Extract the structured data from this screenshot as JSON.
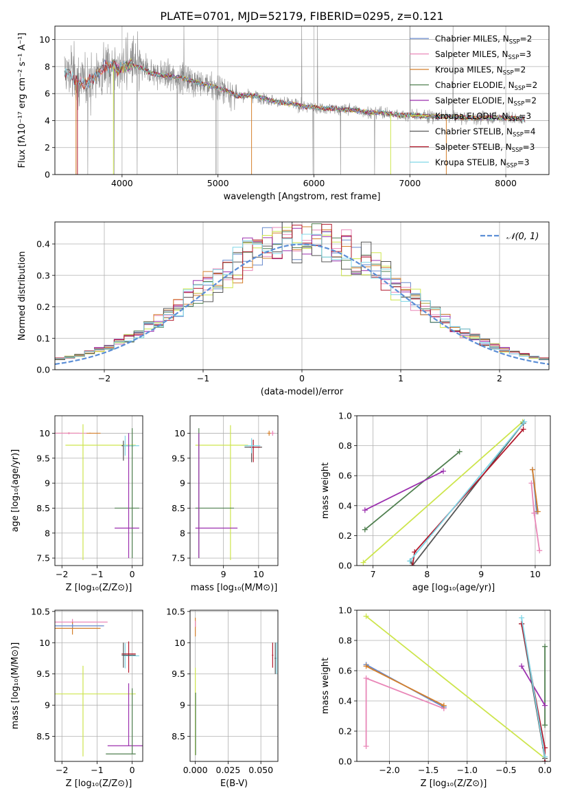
{
  "title": "PLATE=0701, MJD=52179, FIBERID=0295, z=0.121",
  "colors": {
    "Chabrier MILES": "#6688cc",
    "Salpeter MILES": "#e987b8",
    "Kroupa MILES": "#d47f2a",
    "Chabrier ELODIE": "#4f7f4f",
    "Salpeter ELODIE": "#9b2fae",
    "Kroupa ELODIE": "#cde54c",
    "Chabrier STELIB": "#555555",
    "Salpeter STELIB": "#b2182b",
    "Kroupa STELIB": "#7fd6e6",
    "data": "#888888",
    "normal": "#5b8ed6"
  },
  "chart_data": [
    {
      "id": "spectrum",
      "type": "line",
      "xlabel": "wavelength [Angstrom, rest frame]",
      "ylabel": "Flux [fλ10⁻¹⁷ erg cm⁻² s⁻¹ A⁻¹]",
      "xlim": [
        3300,
        8450
      ],
      "ylim": [
        0,
        11
      ],
      "xticks": [
        4000,
        5000,
        6000,
        7000,
        8000
      ],
      "yticks": [
        0,
        2,
        4,
        6,
        8,
        10
      ],
      "legend_position": "top-right",
      "legend": [
        {
          "series": "Chabrier MILES",
          "label": "Chabrier MILES, N",
          "sub": "SSP",
          "tail": "=2"
        },
        {
          "series": "Salpeter MILES",
          "label": "Salpeter MILES, N",
          "sub": "SSP",
          "tail": "=3"
        },
        {
          "series": "Kroupa MILES",
          "label": "Kroupa MILES, N",
          "sub": "SSP",
          "tail": "=2"
        },
        {
          "series": "Chabrier ELODIE",
          "label": "Chabrier ELODIE, N",
          "sub": "SSP",
          "tail": "=2"
        },
        {
          "series": "Salpeter ELODIE",
          "label": "Salpeter ELODIE, N",
          "sub": "SSP",
          "tail": "=2"
        },
        {
          "series": "Kroupa ELODIE",
          "label": "Kroupa ELODIE, N",
          "sub": "SSP",
          "tail": "=3"
        },
        {
          "series": "Chabrier STELIB",
          "label": "Chabrier STELIB, N",
          "sub": "SSP",
          "tail": "=4"
        },
        {
          "series": "Salpeter STELIB",
          "label": "Salpeter STELIB, N",
          "sub": "SSP",
          "tail": "=3"
        },
        {
          "series": "Kroupa STELIB",
          "label": "Kroupa STELIB, N",
          "sub": "SSP",
          "tail": "=3"
        }
      ],
      "continuum": [
        [
          3400,
          7.4
        ],
        [
          3450,
          7.6
        ],
        [
          3500,
          7.1
        ],
        [
          3550,
          6.9
        ],
        [
          3600,
          6.8
        ],
        [
          3650,
          6.9
        ],
        [
          3700,
          7.2
        ],
        [
          3750,
          7.5
        ],
        [
          3800,
          7.9
        ],
        [
          3850,
          8.0
        ],
        [
          3900,
          8.1
        ],
        [
          3950,
          7.7
        ],
        [
          4000,
          8.0
        ],
        [
          4100,
          8.1
        ],
        [
          4200,
          7.9
        ],
        [
          4300,
          7.5
        ],
        [
          4400,
          7.4
        ],
        [
          4500,
          7.3
        ],
        [
          4600,
          7.2
        ],
        [
          4700,
          7.0
        ],
        [
          4800,
          6.8
        ],
        [
          4900,
          6.6
        ],
        [
          5000,
          6.4
        ],
        [
          5100,
          6.2
        ],
        [
          5200,
          5.8
        ],
        [
          5300,
          5.9
        ],
        [
          5400,
          5.8
        ],
        [
          5500,
          5.6
        ],
        [
          5600,
          5.4
        ],
        [
          5700,
          5.3
        ],
        [
          5800,
          5.2
        ],
        [
          5900,
          5.0
        ],
        [
          6000,
          5.0
        ],
        [
          6100,
          4.9
        ],
        [
          6200,
          4.9
        ],
        [
          6300,
          4.8
        ],
        [
          6400,
          4.8
        ],
        [
          6500,
          4.7
        ],
        [
          6600,
          4.6
        ],
        [
          6700,
          4.6
        ],
        [
          6800,
          4.5
        ],
        [
          6900,
          4.4
        ],
        [
          7000,
          4.4
        ],
        [
          7200,
          4.3
        ],
        [
          7400,
          4.3
        ],
        [
          7600,
          4.2
        ],
        [
          7800,
          4.2
        ],
        [
          8000,
          4.2
        ],
        [
          8200,
          4.1
        ]
      ]
    },
    {
      "id": "residuals",
      "type": "bar",
      "xlabel": "(data-model)/error",
      "ylabel": "Normed distribution",
      "xlim": [
        -2.5,
        2.5
      ],
      "ylim": [
        0,
        0.47
      ],
      "xticks": [
        -2,
        -1,
        0,
        1,
        2
      ],
      "yticks": [
        0.0,
        0.1,
        0.2,
        0.3,
        0.4
      ],
      "legend": "𝒩(0, 1)",
      "legend_position": "top-right",
      "bin_width": 0.1
    },
    {
      "id": "age_vs_Z",
      "type": "scatter",
      "xlabel": "Z [log₁₀(Z/Z⊙)]",
      "ylabel": "age  [log₁₀(age/yr)]",
      "xlim": [
        -2.2,
        0.3
      ],
      "ylim": [
        7.35,
        10.35
      ],
      "xticks": [
        -2,
        -1,
        0
      ],
      "yticks": [
        7.5,
        8.0,
        8.5,
        9.0,
        9.5,
        10.0
      ],
      "points": [
        {
          "series": "Kroupa MILES",
          "x": -1.8,
          "y": 10.0,
          "xerr": [
            0.5,
            0.3
          ],
          "yerr": 0.02
        },
        {
          "series": "Salpeter MILES",
          "x": -1.8,
          "y": 10.0,
          "xerr": [
            0.4,
            0.5
          ],
          "yerr": 0.02
        },
        {
          "series": "Kroupa MILES",
          "x": -1.2,
          "y": 10.0,
          "xerr": [
            0.1,
            0.3
          ],
          "yerr": 0.01
        },
        {
          "series": "Kroupa ELODIE",
          "x": -1.4,
          "y": 9.76,
          "xerr": [
            0.5,
            1.5
          ],
          "yerr": [
            2.3,
            0.42
          ]
        },
        {
          "series": "Chabrier STELIB",
          "x": -0.25,
          "y": 9.75,
          "xerr": [
            0.05,
            0.3
          ],
          "yerr": [
            0.3,
            0.1
          ]
        },
        {
          "series": "Kroupa STELIB",
          "x": -0.2,
          "y": 9.75,
          "xerr": [
            0.05,
            0.4
          ],
          "yerr": 0.2
        },
        {
          "series": "Chabrier ELODIE",
          "x": 0.0,
          "y": 8.5,
          "xerr": [
            0.5,
            0.2
          ],
          "yerr": [
            1.0,
            1.6
          ]
        },
        {
          "series": "Salpeter ELODIE",
          "x": -0.1,
          "y": 8.1,
          "xerr": [
            0.4,
            0.3
          ],
          "yerr": [
            0.6,
            1.9
          ]
        }
      ]
    },
    {
      "id": "age_vs_mass",
      "type": "scatter",
      "xlabel": "mass [log₁₀(M/M⊙)]",
      "ylabel": "",
      "xlim": [
        8.05,
        10.55
      ],
      "ylim": [
        7.35,
        10.35
      ],
      "xticks": [
        9,
        10
      ],
      "yticks": [
        7.5,
        8.0,
        8.5,
        9.0,
        9.5,
        10.0
      ],
      "points": [
        {
          "series": "Kroupa MILES",
          "x": 10.3,
          "y": 10.0,
          "xerr": 0.05,
          "yerr": 0.05
        },
        {
          "series": "Salpeter MILES",
          "x": 10.4,
          "y": 10.0,
          "xerr": 0.05,
          "yerr": 0.05
        },
        {
          "series": "Kroupa ELODIE",
          "x": 9.2,
          "y": 9.76,
          "xerr": [
            1.0,
            0.5
          ],
          "yerr": [
            2.3,
            0.4
          ]
        },
        {
          "series": "Chabrier STELIB",
          "x": 9.8,
          "y": 9.72,
          "xerr": [
            0.2,
            0.3
          ],
          "yerr": [
            0.3,
            0.15
          ]
        },
        {
          "series": "Salpeter STELIB",
          "x": 9.85,
          "y": 9.72,
          "xerr": [
            0.1,
            0.2
          ],
          "yerr": [
            0.3,
            0.15
          ]
        },
        {
          "series": "Kroupa STELIB",
          "x": 9.8,
          "y": 9.75,
          "xerr": [
            0.2,
            0.25
          ],
          "yerr": 0.15
        },
        {
          "series": "Chabrier ELODIE",
          "x": 8.3,
          "y": 8.5,
          "xerr": [
            0.1,
            1.0
          ],
          "yerr": [
            1.0,
            1.6
          ]
        },
        {
          "series": "Salpeter ELODIE",
          "x": 8.3,
          "y": 8.1,
          "xerr": [
            0.1,
            1.1
          ],
          "yerr": [
            0.6,
            1.9
          ]
        }
      ]
    },
    {
      "id": "weight_vs_age",
      "type": "line",
      "xlabel": "age  [log₁₀(age/yr)]",
      "ylabel": "mass weight",
      "xlim": [
        6.7,
        10.28
      ],
      "ylim": [
        0,
        1.0
      ],
      "xticks": [
        7,
        8,
        9,
        10
      ],
      "yticks": [
        0.0,
        0.2,
        0.4,
        0.6,
        0.8,
        1.0
      ],
      "series": [
        {
          "name": "Chabrier MILES",
          "x": [
            9.95,
            10.03
          ],
          "y": [
            0.64,
            0.36
          ]
        },
        {
          "name": "Salpeter MILES",
          "x": [
            9.93,
            9.98,
            10.08
          ],
          "y": [
            0.55,
            0.35,
            0.1
          ]
        },
        {
          "name": "Kroupa MILES",
          "x": [
            9.95,
            10.05
          ],
          "y": [
            0.64,
            0.36
          ]
        },
        {
          "name": "Chabrier ELODIE",
          "x": [
            6.85,
            8.6
          ],
          "y": [
            0.24,
            0.76
          ]
        },
        {
          "name": "Salpeter ELODIE",
          "x": [
            6.85,
            8.3
          ],
          "y": [
            0.37,
            0.63
          ]
        },
        {
          "name": "Kroupa ELODIE",
          "x": [
            6.82,
            9.77
          ],
          "y": [
            0.02,
            0.96
          ]
        },
        {
          "name": "Chabrier STELIB",
          "x": [
            7.7,
            7.73,
            9.78
          ],
          "y": [
            0.03,
            0.0,
            0.95
          ]
        },
        {
          "name": "Salpeter STELIB",
          "x": [
            7.73,
            7.77,
            9.78
          ],
          "y": [
            0.0,
            0.09,
            0.91
          ]
        },
        {
          "name": "Kroupa STELIB",
          "x": [
            7.68,
            9.8
          ],
          "y": [
            0.03,
            0.96
          ]
        }
      ]
    },
    {
      "id": "mass_vs_Z",
      "type": "scatter",
      "xlabel": "Z [log₁₀(Z/Z⊙)]",
      "ylabel": "mass [log₁₀(M/M⊙)]",
      "xlim": [
        -2.2,
        0.3
      ],
      "ylim": [
        8.1,
        10.52
      ],
      "xticks": [
        -2,
        -1,
        0
      ],
      "yticks": [
        8.5,
        9.0,
        9.5,
        10.0,
        10.5
      ],
      "points": [
        {
          "series": "Salpeter MILES",
          "x": -1.7,
          "y": 10.33,
          "xerr": [
            0.6,
            1.0
          ],
          "yerr": 0.05
        },
        {
          "series": "Kroupa MILES",
          "x": -1.7,
          "y": 10.23,
          "xerr": [
            0.6,
            0.8
          ],
          "yerr": 0.1
        },
        {
          "series": "Chabrier MILES",
          "x": -1.7,
          "y": 10.27,
          "xerr": [
            0.6,
            0.9
          ],
          "yerr": 0.03
        },
        {
          "series": "Kroupa STELIB",
          "x": -0.2,
          "y": 9.79,
          "xerr": [
            0.05,
            0.4
          ],
          "yerr": 0.2
        },
        {
          "series": "Salpeter STELIB",
          "x": -0.1,
          "y": 9.82,
          "xerr": [
            0.2,
            0.2
          ],
          "yerr": [
            0.3,
            0.2
          ]
        },
        {
          "series": "Chabrier STELIB",
          "x": -0.25,
          "y": 9.8,
          "xerr": [
            0.05,
            0.35
          ],
          "yerr": 0.2
        },
        {
          "series": "Kroupa ELODIE",
          "x": -1.4,
          "y": 9.18,
          "xerr": [
            1.0,
            1.5
          ],
          "yerr": [
            1.0,
            0.45
          ]
        },
        {
          "series": "Salpeter ELODIE",
          "x": -0.1,
          "y": 8.35,
          "xerr": [
            0.6,
            0.4
          ],
          "yerr": [
            0.0,
            1.0
          ]
        },
        {
          "series": "Chabrier ELODIE",
          "x": 0.0,
          "y": 8.22,
          "xerr": [
            0.75,
            0.1
          ],
          "yerr": [
            0.0,
            1.05
          ]
        }
      ]
    },
    {
      "id": "mass_vs_ebv",
      "type": "scatter",
      "xlabel": "E(B-V)",
      "ylabel": "",
      "xlim": [
        -0.004,
        0.063
      ],
      "ylim": [
        8.1,
        10.52
      ],
      "xticks": [
        0.0,
        0.025,
        0.05
      ],
      "xtick_labels": [
        "0.000",
        "0.025",
        "0.050"
      ],
      "yticks": [
        8.5,
        9.0,
        9.5,
        10.0,
        10.5
      ],
      "points": [
        {
          "series": "Kroupa MILES",
          "x": 0.0,
          "y": 10.25,
          "xerr": 0.0003,
          "yerr": 0.15
        },
        {
          "series": "Salpeter MILES",
          "x": 0.0,
          "y": 10.3,
          "xerr": 0.0003,
          "yerr": 0.05
        },
        {
          "series": "Kroupa ELODIE",
          "x": 0.0,
          "y": 8.9,
          "xerr": 0.0003,
          "yerr": 0.7
        },
        {
          "series": "Chabrier ELODIE",
          "x": 0.0002,
          "y": 8.7,
          "xerr": 0.0002,
          "yerr": 0.5
        },
        {
          "series": "Salpeter STELIB",
          "x": 0.059,
          "y": 9.8,
          "xerr": 0.0005,
          "yerr": 0.2
        },
        {
          "series": "Chabrier STELIB",
          "x": 0.061,
          "y": 9.75,
          "xerr": 0.0005,
          "yerr": 0.25
        },
        {
          "series": "Kroupa STELIB",
          "x": 0.062,
          "y": 9.75,
          "xerr": 0.0005,
          "yerr": 0.25
        }
      ]
    },
    {
      "id": "weight_vs_Z",
      "type": "line",
      "xlabel": "Z [log₁₀(Z/Z⊙)]",
      "ylabel": "mass weight",
      "xlim": [
        -2.42,
        0.07
      ],
      "ylim": [
        0,
        1.0
      ],
      "xticks": [
        -2.0,
        -1.5,
        -1.0,
        -0.5,
        0.0
      ],
      "xtick_labels": [
        "−2.0",
        "−1.5",
        "−1.0",
        "−0.5",
        "0.0"
      ],
      "yticks": [
        0.0,
        0.2,
        0.4,
        0.6,
        0.8,
        1.0
      ],
      "series": [
        {
          "name": "Chabrier MILES",
          "x": [
            -2.3,
            -1.3
          ],
          "y": [
            0.64,
            0.36
          ]
        },
        {
          "name": "Salpeter MILES",
          "x": [
            -2.3,
            -2.3,
            -1.3
          ],
          "y": [
            0.1,
            0.55,
            0.35
          ]
        },
        {
          "name": "Kroupa MILES",
          "x": [
            -2.3,
            -1.3
          ],
          "y": [
            0.63,
            0.37
          ]
        },
        {
          "name": "Chabrier ELODIE",
          "x": [
            0.0,
            0.0
          ],
          "y": [
            0.24,
            0.76
          ]
        },
        {
          "name": "Salpeter ELODIE",
          "x": [
            -0.3,
            0.0
          ],
          "y": [
            0.63,
            0.37
          ]
        },
        {
          "name": "Kroupa ELODIE",
          "x": [
            -2.3,
            0.0
          ],
          "y": [
            0.96,
            0.02
          ]
        },
        {
          "name": "Chabrier STELIB",
          "x": [
            -0.3,
            0.0,
            0.0
          ],
          "y": [
            0.91,
            0.02,
            0.0
          ]
        },
        {
          "name": "Salpeter STELIB",
          "x": [
            -0.3,
            0.0,
            0.0
          ],
          "y": [
            0.91,
            0.09,
            0.0
          ]
        },
        {
          "name": "Kroupa STELIB",
          "x": [
            -0.3,
            0.0
          ],
          "y": [
            0.95,
            0.03
          ]
        }
      ]
    }
  ]
}
